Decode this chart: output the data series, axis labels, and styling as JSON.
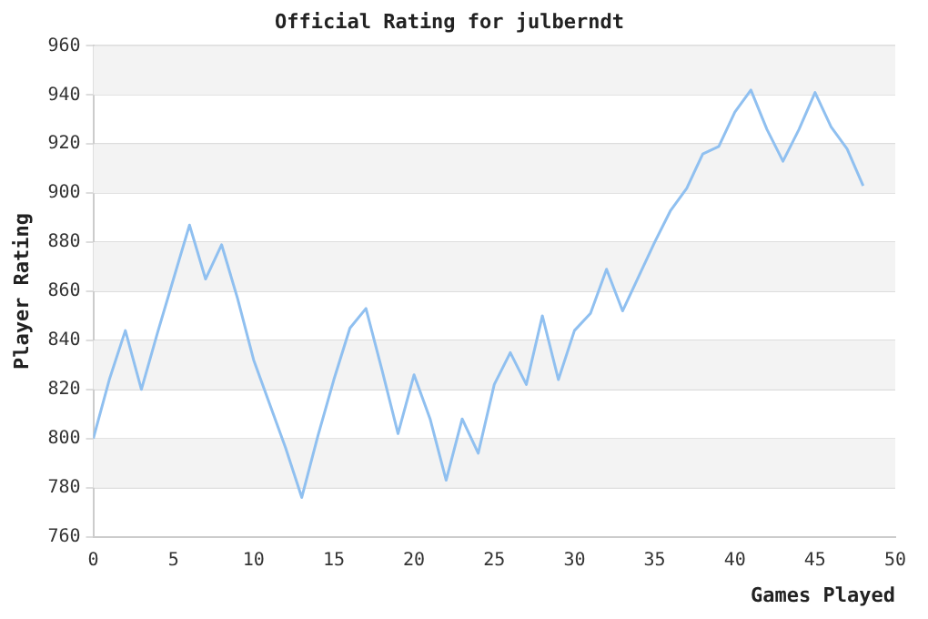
{
  "chart_data": {
    "type": "line",
    "title": "Official Rating for julberndt",
    "xlabel": "Games Played",
    "ylabel": "Player Rating",
    "x": [
      0,
      1,
      2,
      3,
      4,
      5,
      6,
      7,
      8,
      9,
      10,
      11,
      12,
      13,
      14,
      15,
      16,
      17,
      18,
      19,
      20,
      21,
      22,
      23,
      24,
      25,
      26,
      27,
      28,
      29,
      30,
      31,
      32,
      33,
      34,
      35,
      36,
      37,
      38,
      39,
      40,
      41,
      42,
      43,
      44,
      45,
      46,
      47,
      48
    ],
    "series": [
      {
        "color": "#90c0f0",
        "values": [
          800,
          824,
          844,
          820,
          843,
          865,
          887,
          865,
          879,
          857,
          832,
          814,
          796,
          776,
          801,
          824,
          845,
          853,
          828,
          802,
          826,
          808,
          783,
          808,
          794,
          822,
          835,
          822,
          850,
          824,
          844,
          851,
          869,
          852,
          866,
          880,
          893,
          902,
          916,
          919,
          933,
          942,
          926,
          913,
          926,
          941,
          927,
          918,
          903
        ]
      }
    ],
    "xlim": [
      0,
      50
    ],
    "xticks": [
      0,
      5,
      10,
      15,
      20,
      25,
      30,
      35,
      40,
      45,
      50
    ],
    "ylim": [
      760,
      960
    ],
    "yticks": [
      760,
      780,
      800,
      820,
      840,
      860,
      880,
      900,
      920,
      940,
      960
    ],
    "grid": "y",
    "legend": false,
    "marker": "none",
    "line_style": "solid"
  }
}
